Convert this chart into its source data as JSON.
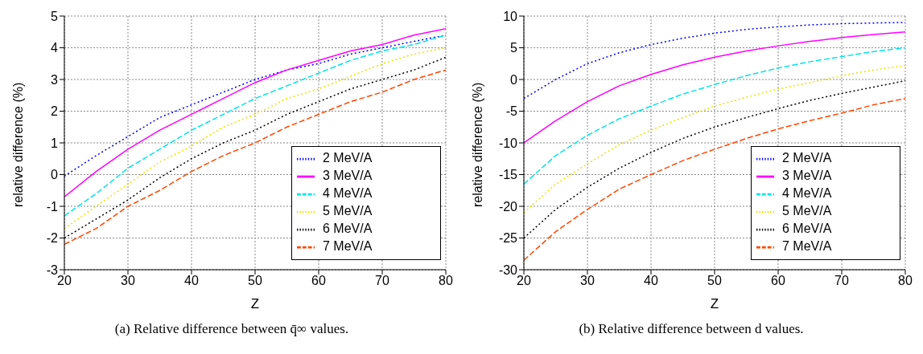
{
  "chart_data": [
    {
      "type": "line",
      "xlabel": "Z",
      "ylabel": "relative difference (%)",
      "annotations": [
        "(a)  Relative difference between q̄∞ values."
      ],
      "x": [
        20,
        25,
        30,
        35,
        40,
        45,
        50,
        55,
        60,
        65,
        70,
        75,
        80
      ],
      "xlim": [
        20,
        80
      ],
      "xticks": [
        20,
        30,
        40,
        50,
        60,
        70,
        80
      ],
      "ylim": [
        -3,
        5
      ],
      "yticks": [
        -3,
        -2,
        -1,
        0,
        1,
        2,
        3,
        4,
        5
      ],
      "grid": true,
      "legend": "bottom right",
      "series": [
        {
          "name": "2 MeV/A",
          "color": "#0000ff",
          "line_style": "dotted",
          "values": [
            -0.05,
            0.6,
            1.2,
            1.8,
            2.2,
            2.6,
            3.0,
            3.3,
            3.5,
            3.8,
            4.0,
            4.2,
            4.4
          ]
        },
        {
          "name": "3 MeV/A",
          "color": "#ff00ff",
          "line_style": "solid",
          "values": [
            -0.7,
            0.1,
            0.8,
            1.4,
            1.9,
            2.4,
            2.9,
            3.3,
            3.6,
            3.9,
            4.1,
            4.4,
            4.6
          ]
        },
        {
          "name": "4 MeV/A",
          "color": "#00e5e5",
          "line_style": "dashed",
          "values": [
            -1.3,
            -0.6,
            0.2,
            0.8,
            1.4,
            1.9,
            2.4,
            2.8,
            3.2,
            3.6,
            3.9,
            4.1,
            4.4
          ]
        },
        {
          "name": "5 MeV/A",
          "color": "#e5e500",
          "line_style": "dotted",
          "values": [
            -1.7,
            -1.0,
            -0.3,
            0.4,
            0.9,
            1.5,
            1.9,
            2.4,
            2.7,
            3.1,
            3.5,
            3.8,
            4.0
          ]
        },
        {
          "name": "6 MeV/A",
          "color": "#000000",
          "line_style": "dotted",
          "values": [
            -2.0,
            -1.4,
            -0.8,
            -0.1,
            0.5,
            1.0,
            1.4,
            1.9,
            2.3,
            2.7,
            3.0,
            3.3,
            3.7
          ]
        },
        {
          "name": "7 MeV/A",
          "color": "#ff4500",
          "line_style": "dashed",
          "values": [
            -2.2,
            -1.7,
            -1.0,
            -0.5,
            0.1,
            0.6,
            1.0,
            1.5,
            1.9,
            2.3,
            2.6,
            3.0,
            3.3
          ]
        }
      ]
    },
    {
      "type": "line",
      "xlabel": "Z",
      "ylabel": "relative difference (%)",
      "annotations": [
        "(b)  Relative difference between d values."
      ],
      "x": [
        20,
        25,
        30,
        35,
        40,
        45,
        50,
        55,
        60,
        65,
        70,
        75,
        80
      ],
      "xlim": [
        20,
        80
      ],
      "xticks": [
        20,
        30,
        40,
        50,
        60,
        70,
        80
      ],
      "ylim": [
        -30,
        10
      ],
      "yticks": [
        -30,
        -25,
        -20,
        -15,
        -10,
        -5,
        0,
        5,
        10
      ],
      "grid": true,
      "legend": "bottom right",
      "series": [
        {
          "name": "2 MeV/A",
          "color": "#0000ff",
          "line_style": "dotted",
          "values": [
            -3,
            0,
            2.5,
            4.2,
            5.5,
            6.5,
            7.3,
            7.9,
            8.3,
            8.6,
            8.8,
            8.9,
            9.0
          ]
        },
        {
          "name": "3 MeV/A",
          "color": "#ff00ff",
          "line_style": "solid",
          "values": [
            -10,
            -6.5,
            -3.5,
            -1.0,
            0.8,
            2.3,
            3.5,
            4.5,
            5.3,
            6.0,
            6.6,
            7.1,
            7.5
          ]
        },
        {
          "name": "4 MeV/A",
          "color": "#00e5e5",
          "line_style": "dashed",
          "values": [
            -16.5,
            -12,
            -8.8,
            -6.2,
            -4.2,
            -2.3,
            -0.8,
            0.6,
            1.8,
            2.8,
            3.6,
            4.4,
            5.0
          ]
        },
        {
          "name": "5 MeV/A",
          "color": "#e5e500",
          "line_style": "dotted",
          "values": [
            -21,
            -16.5,
            -13.3,
            -10.3,
            -8,
            -6,
            -4.2,
            -2.8,
            -1.5,
            -0.5,
            0.6,
            1.5,
            2.2
          ]
        },
        {
          "name": "6 MeV/A",
          "color": "#000000",
          "line_style": "dotted",
          "values": [
            -25,
            -20.5,
            -17,
            -14,
            -11.5,
            -9.3,
            -7.5,
            -6,
            -4.6,
            -3.3,
            -2.2,
            -1.2,
            -0.2
          ]
        },
        {
          "name": "7 MeV/A",
          "color": "#ff4500",
          "line_style": "dashed",
          "values": [
            -28.5,
            -24,
            -20.5,
            -17.3,
            -15,
            -12.8,
            -11,
            -9.3,
            -7.8,
            -6.5,
            -5.3,
            -4,
            -3
          ]
        }
      ]
    }
  ]
}
